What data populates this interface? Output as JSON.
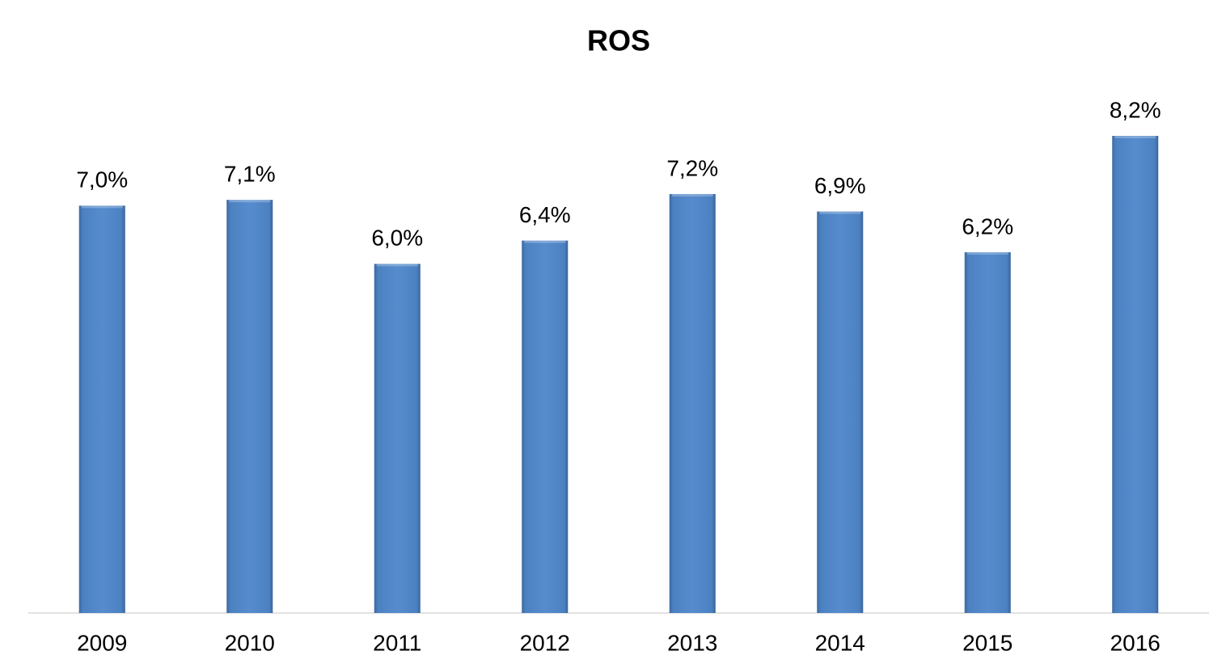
{
  "chart_data": {
    "type": "bar",
    "title": "ROS",
    "categories": [
      "2009",
      "2010",
      "2011",
      "2012",
      "2013",
      "2014",
      "2015",
      "2016"
    ],
    "values": [
      7.0,
      7.1,
      6.0,
      6.4,
      7.2,
      6.9,
      6.2,
      8.2
    ],
    "value_labels": [
      "7,0%",
      "7,1%",
      "6,0%",
      "6,4%",
      "7,2%",
      "6,9%",
      "6,2%",
      "8,2%"
    ],
    "color": "#4f87cb"
  }
}
